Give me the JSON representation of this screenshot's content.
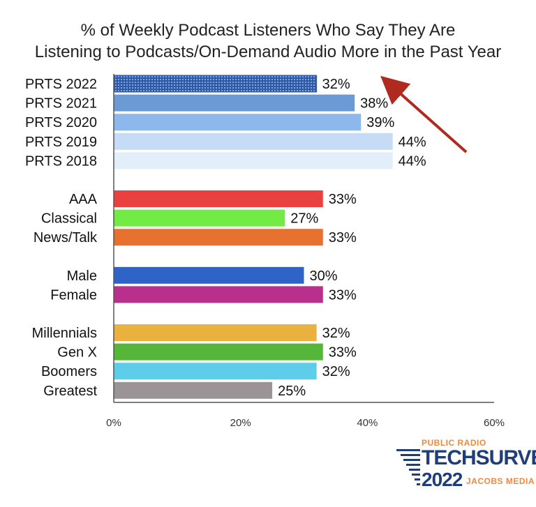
{
  "chart_data": {
    "type": "bar",
    "orientation": "horizontal",
    "title": [
      "% of Weekly Podcast Listeners Who Say They Are",
      "Listening to Podcasts/On-Demand Audio More in the Past Year"
    ],
    "groups": [
      {
        "bars": [
          {
            "label": "PRTS 2022",
            "value": 32,
            "value_label": "32%",
            "color": "#2e5aa8",
            "pattern": "dotted"
          },
          {
            "label": "PRTS 2021",
            "value": 38,
            "value_label": "38%",
            "color": "#6b9ad4"
          },
          {
            "label": "PRTS 2020",
            "value": 39,
            "value_label": "39%",
            "color": "#8db8ec"
          },
          {
            "label": "PRTS 2019",
            "value": 44,
            "value_label": "44%",
            "color": "#c6dbf5"
          },
          {
            "label": "PRTS 2018",
            "value": 44,
            "value_label": "44%",
            "color": "#e3eefb"
          }
        ]
      },
      {
        "bars": [
          {
            "label": "AAA",
            "value": 33,
            "value_label": "33%",
            "color": "#e8413f"
          },
          {
            "label": "Classical",
            "value": 27,
            "value_label": "27%",
            "color": "#72ec45"
          },
          {
            "label": "News/Talk",
            "value": 33,
            "value_label": "33%",
            "color": "#e7722f"
          }
        ]
      },
      {
        "bars": [
          {
            "label": "Male",
            "value": 30,
            "value_label": "30%",
            "color": "#2e63c8"
          },
          {
            "label": "Female",
            "value": 33,
            "value_label": "33%",
            "color": "#b82f8c"
          }
        ]
      },
      {
        "bars": [
          {
            "label": "Millennials",
            "value": 32,
            "value_label": "32%",
            "color": "#ebb13e"
          },
          {
            "label": "Gen X",
            "value": 33,
            "value_label": "33%",
            "color": "#55b63a"
          },
          {
            "label": "Boomers",
            "value": 32,
            "value_label": "32%",
            "color": "#5dcdea"
          },
          {
            "label": "Greatest",
            "value": 25,
            "value_label": "25%",
            "color": "#9b9497"
          }
        ]
      }
    ],
    "xlim": [
      0,
      60
    ],
    "xticks": [
      0,
      20,
      40,
      60
    ],
    "xtick_labels": [
      "0%",
      "20%",
      "40%",
      "60%"
    ],
    "gridlines": false,
    "annotations": [
      {
        "type": "arrow",
        "color": "#b02a20",
        "direction": "up-left",
        "points_at": "PRTS 2022"
      }
    ]
  },
  "logo": {
    "line1": "PUBLIC RADIO",
    "line2": "TECHSURVEY",
    "line3": "2022",
    "line4": "JACOBS MEDIA"
  }
}
